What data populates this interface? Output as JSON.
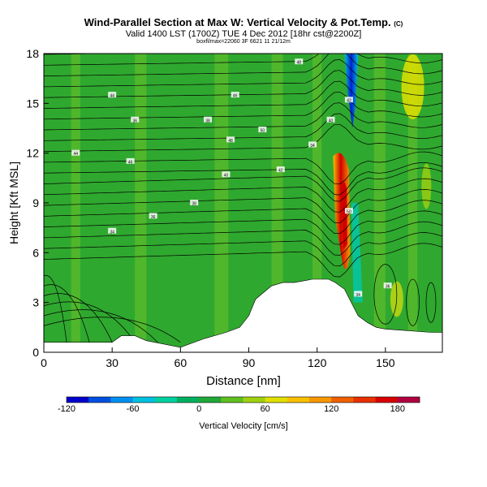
{
  "chart_data": {
    "type": "heatmap",
    "title": "Wind-Parallel Section at Max W: Vertical Velocity & Pot.Temp.",
    "title_mark": "(C)",
    "subtitle": "Valid 1400 LST (1700Z) TUE 4 Dec 2012 [18hr cst@2200Z]",
    "subtitle2": "boxfl/max=22060 3F 6621 11 21/12m",
    "xlabel": "Distance [nm]",
    "ylabel": "Height [Kft MSL]",
    "xlim": [
      0,
      175
    ],
    "ylim": [
      0,
      18
    ],
    "xticks": [
      0,
      30,
      60,
      90,
      120,
      150
    ],
    "yticks": [
      0,
      3,
      6,
      9,
      12,
      15,
      18
    ],
    "grid": false,
    "colorbar": {
      "label": "Vertical Velocity [cm/s]",
      "tick_labels": [
        "-120",
        "-60",
        "0",
        "60",
        "120",
        "180"
      ],
      "tick_values": [
        -120,
        -60,
        0,
        60,
        120,
        180
      ],
      "range": [
        -120,
        200
      ],
      "colors": [
        "#0000cc",
        "#0050e0",
        "#0090f0",
        "#00c0e0",
        "#00d0a0",
        "#00b060",
        "#20a838",
        "#60c020",
        "#a0d010",
        "#e0e000",
        "#f8c000",
        "#f89800",
        "#f06000",
        "#e83000",
        "#d80000",
        "#b00040"
      ]
    },
    "terrain": [
      [
        0,
        0.6
      ],
      [
        10,
        0.6
      ],
      [
        20,
        0.6
      ],
      [
        30,
        0.6
      ],
      [
        34,
        1.0
      ],
      [
        40,
        1.0
      ],
      [
        45,
        0.7
      ],
      [
        60,
        0.3
      ],
      [
        70,
        0.8
      ],
      [
        80,
        1.2
      ],
      [
        86,
        1.5
      ],
      [
        90,
        2.2
      ],
      [
        93,
        3.2
      ],
      [
        100,
        4.0
      ],
      [
        105,
        4.2
      ],
      [
        110,
        4.2
      ],
      [
        118,
        4.4
      ],
      [
        125,
        4.4
      ],
      [
        128,
        4.2
      ],
      [
        132,
        3.8
      ],
      [
        135,
        3.0
      ],
      [
        138,
        2.2
      ],
      [
        142,
        1.8
      ],
      [
        146,
        1.5
      ],
      [
        150,
        1.4
      ],
      [
        160,
        1.3
      ],
      [
        170,
        1.2
      ],
      [
        175,
        1.2
      ]
    ],
    "series": [
      {
        "name": "-120",
        "values": [
          [
            134,
            16.5
          ],
          [
            135,
            17.2
          ],
          [
            136,
            18
          ]
        ]
      },
      {
        "name": "180",
        "values": [
          [
            131,
            7.5
          ],
          [
            132,
            9
          ],
          [
            132.5,
            10.5
          ]
        ]
      }
    ],
    "isentrope_labels": [
      "34",
      "36",
      "38",
      "40",
      "42",
      "44",
      "46",
      "48",
      "50"
    ]
  },
  "colors": {
    "background_field": "#2fa82f",
    "light_field": "#6cc22a",
    "downdraft": "#0018c8",
    "updraft": "#d00000"
  }
}
